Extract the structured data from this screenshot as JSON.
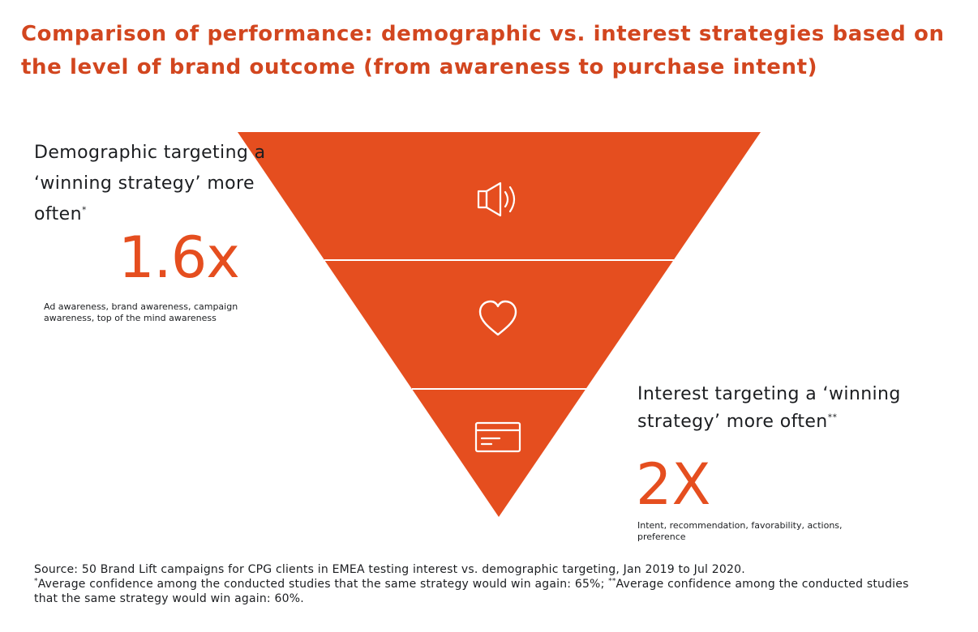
{
  "title": "Comparison of performance: demographic vs. interest strategies based on the level of brand outcome (from awareness to purchase intent)",
  "colors": {
    "title": "#d2461f",
    "funnel": "#e54e1f",
    "accent_numbers": "#e54e1f",
    "divider": "#ffffff"
  },
  "funnel": {
    "levels": [
      {
        "icon": "speaker-icon"
      },
      {
        "icon": "heart-icon"
      },
      {
        "icon": "credit-card-icon"
      }
    ]
  },
  "demographic": {
    "heading": "Demographic targeting a ‘winning strategy’ more often",
    "marker": "*",
    "multiplier": "1.6x",
    "description": "Ad awareness, brand awareness, campaign awareness, top of the mind awareness"
  },
  "interest": {
    "heading": "Interest targeting a ‘winning strategy’ more often",
    "marker": "**",
    "multiplier": "2X",
    "description": "Intent, recommendation, favorability, actions, preference"
  },
  "footnotes": {
    "source": "Source: 50 Brand Lift campaigns for CPG clients in EMEA testing interest vs. demographic targeting, Jan 2019 to Jul 2020.",
    "note1_marker": "*",
    "note1": "Average confidence among the conducted studies that the same strategy would win again: 65%; ",
    "note2_marker": "**",
    "note2": "Average confidence among the conducted studies that the same strategy would win again: 60%."
  }
}
